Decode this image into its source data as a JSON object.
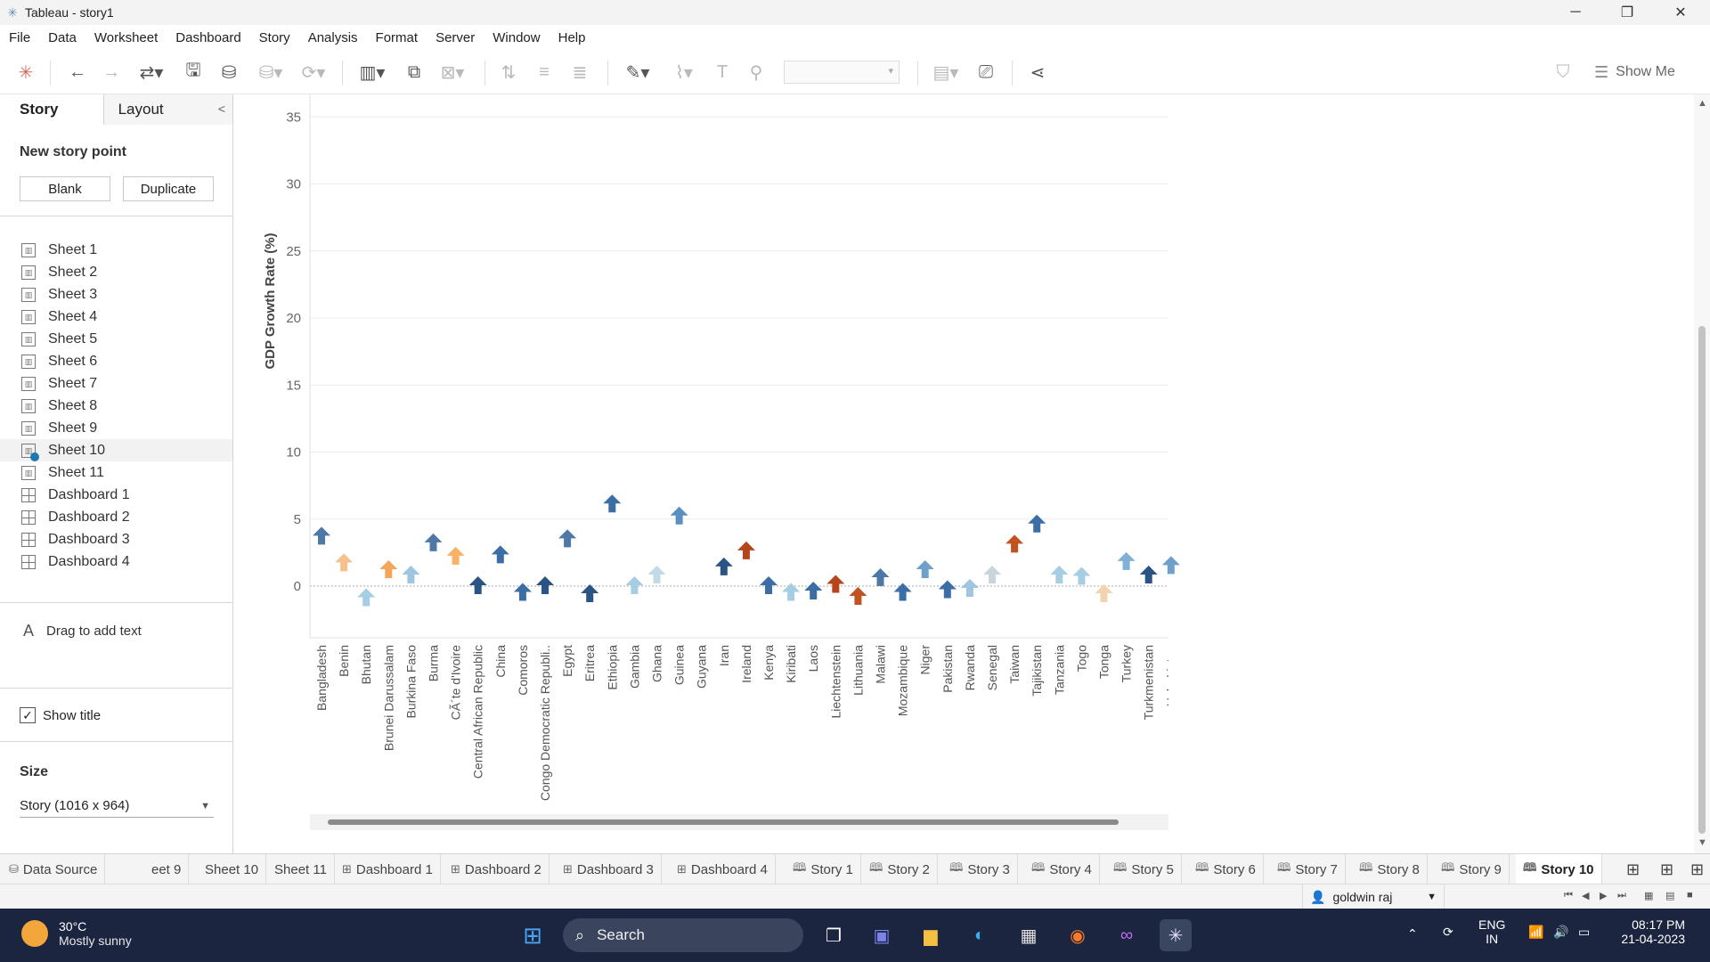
{
  "window": {
    "title": "Tableau - story1",
    "minimize": "─",
    "maximize": "❐",
    "close": "✕"
  },
  "menu": [
    "File",
    "Data",
    "Worksheet",
    "Dashboard",
    "Story",
    "Analysis",
    "Format",
    "Server",
    "Window",
    "Help"
  ],
  "toolbar": {
    "show_me": "Show Me"
  },
  "left_pane": {
    "tabs": [
      "Story",
      "Layout"
    ],
    "new_story_point": "New story point",
    "blank_button": "Blank",
    "duplicate_button": "Duplicate",
    "items": [
      {
        "label": "Sheet 1",
        "kind": "sheet"
      },
      {
        "label": "Sheet 2",
        "kind": "sheet"
      },
      {
        "label": "Sheet 3",
        "kind": "sheet"
      },
      {
        "label": "Sheet 4",
        "kind": "sheet"
      },
      {
        "label": "Sheet 5",
        "kind": "sheet"
      },
      {
        "label": "Sheet 6",
        "kind": "sheet"
      },
      {
        "label": "Sheet 7",
        "kind": "sheet"
      },
      {
        "label": "Sheet 8",
        "kind": "sheet"
      },
      {
        "label": "Sheet 9",
        "kind": "sheet"
      },
      {
        "label": "Sheet 10",
        "kind": "sheet",
        "in_use": true
      },
      {
        "label": "Sheet 11",
        "kind": "sheet"
      },
      {
        "label": "Dashboard 1",
        "kind": "dashboard"
      },
      {
        "label": "Dashboard 2",
        "kind": "dashboard"
      },
      {
        "label": "Dashboard 3",
        "kind": "dashboard"
      },
      {
        "label": "Dashboard 4",
        "kind": "dashboard"
      }
    ],
    "drag_text": "Drag to add text",
    "show_title": "Show title",
    "size_label": "Size",
    "size_value": "Story (1016 x 964)"
  },
  "chart_data": {
    "type": "scatter",
    "mark": "arrow-up",
    "ylabel": "GDP Growth Rate (%)",
    "xlabel": "",
    "ylim": [
      -4,
      36
    ],
    "yticks": [
      0,
      5,
      10,
      15,
      20,
      25,
      30,
      35
    ],
    "grid": true,
    "categories": [
      "Bangladesh",
      "Benin",
      "Bhutan",
      "Brunei Darussalam",
      "Burkina Faso",
      "Burma",
      "CÃ´te d'Ivoire",
      "Central African Republic",
      "China",
      "Comoros",
      "Congo Democratic Republi..",
      "Egypt",
      "Eritrea",
      "Ethiopia",
      "Gambia",
      "Ghana",
      "Guinea",
      "Guyana",
      "Iran",
      "Ireland",
      "Kenya",
      "Kiribati",
      "Laos",
      "Liechtenstein",
      "Lithuania",
      "Malawi",
      "Mozambique",
      "Niger",
      "Pakistan",
      "Rwanda",
      "Senegal",
      "Taiwan",
      "Tajikistan",
      "Tanzania",
      "Togo",
      "Tonga",
      "Turkey",
      "Turkmenistan",
      "Uzbekistan"
    ],
    "values": [
      3.7,
      1.7,
      -0.9,
      1.2,
      0.8,
      3.2,
      2.2,
      0.0,
      2.3,
      -0.5,
      0.0,
      3.5,
      -0.6,
      6.1,
      0.0,
      0.8,
      5.2,
      null,
      1.4,
      2.6,
      0.0,
      -0.5,
      -0.4,
      0.1,
      -0.8,
      0.6,
      -0.5,
      1.2,
      -0.3,
      -0.2,
      0.8,
      3.1,
      4.6,
      0.8,
      0.7,
      -0.6,
      1.8,
      0.8,
      1.5
    ],
    "colors": [
      "#4e79a7",
      "#f5c28e",
      "#a6cee3",
      "#f4a55a",
      "#9ec6e0",
      "#4e79a7",
      "#f8b266",
      "#2a5483",
      "#3b6ea5",
      "#3b6ea5",
      "#2a5483",
      "#4e79a7",
      "#2a5483",
      "#3b6ea5",
      "#a6cee3",
      "#c2d9e6",
      "#5b8fc2",
      null,
      "#2a5483",
      "#b5451b",
      "#3b6ea5",
      "#a6cee3",
      "#3b6ea5",
      "#b5451b",
      "#c2521f",
      "#4e79a7",
      "#3b6ea5",
      "#6fa0c9",
      "#3b6ea5",
      "#9ec6e0",
      "#c8d6dc",
      "#c2521f",
      "#3b6ea5",
      "#a6cee3",
      "#a6cee3",
      "#f2d3b0",
      "#7fb0d7",
      "#2a5483",
      "#6fa0c9"
    ]
  },
  "sheet_tabs": [
    {
      "label": "Data Source",
      "icon": "datasource"
    },
    {
      "label": "eet 9",
      "icon": "none"
    },
    {
      "label": "Sheet 10",
      "icon": "none"
    },
    {
      "label": "Sheet 11",
      "icon": "none"
    },
    {
      "label": "Dashboard 1",
      "icon": "dashboard"
    },
    {
      "label": "Dashboard 2",
      "icon": "dashboard"
    },
    {
      "label": "Dashboard 3",
      "icon": "dashboard"
    },
    {
      "label": "Dashboard 4",
      "icon": "dashboard"
    },
    {
      "label": "Story 1",
      "icon": "story"
    },
    {
      "label": "Story 2",
      "icon": "story"
    },
    {
      "label": "Story 3",
      "icon": "story"
    },
    {
      "label": "Story 4",
      "icon": "story"
    },
    {
      "label": "Story 5",
      "icon": "story"
    },
    {
      "label": "Story 6",
      "icon": "story"
    },
    {
      "label": "Story 7",
      "icon": "story"
    },
    {
      "label": "Story 8",
      "icon": "story"
    },
    {
      "label": "Story 9",
      "icon": "story"
    },
    {
      "label": "Story 10",
      "icon": "story",
      "active": true
    }
  ],
  "status": {
    "user": "goldwin raj"
  },
  "taskbar": {
    "temperature": "30°C",
    "weather": "Mostly sunny",
    "search": "Search",
    "lang1": "ENG",
    "lang2": "IN",
    "time": "08:17 PM",
    "date": "21-04-2023"
  }
}
